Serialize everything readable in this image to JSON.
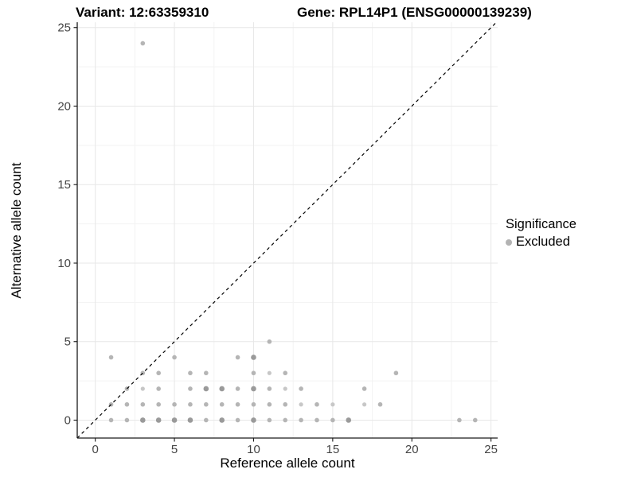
{
  "chart_data": {
    "type": "scatter",
    "title_left": "Variant: 12:63359310",
    "title_right": "Gene: RPL14P1 (ENSG00000139239)",
    "xlabel": "Reference allele count",
    "ylabel": "Alternative allele count",
    "xlim": [
      -1.14,
      25.42
    ],
    "ylim": [
      -1.14,
      25.34
    ],
    "x_ticks": [
      0,
      5,
      10,
      15,
      20,
      25
    ],
    "y_ticks": [
      0,
      5,
      10,
      15,
      20,
      25
    ],
    "x_minor_ticks": [
      2.5,
      7.5,
      12.5,
      17.5,
      22.5
    ],
    "y_minor_ticks": [
      2.5,
      7.5,
      12.5,
      17.5,
      22.5
    ],
    "grid": true,
    "identity_line": {
      "type": "abline",
      "slope": 1,
      "intercept": 0,
      "style": "dashed",
      "color": "#000000"
    },
    "legend": {
      "position": "right",
      "title": "Significance",
      "items": [
        {
          "label": "Excluded",
          "color": "#b3b3b3"
        }
      ]
    },
    "series": [
      {
        "name": "Excluded",
        "points": [
          [
            1,
            0
          ],
          [
            2,
            0
          ],
          [
            3,
            0,
            "d"
          ],
          [
            4,
            0,
            "d"
          ],
          [
            5,
            0,
            "d"
          ],
          [
            6,
            0,
            "d"
          ],
          [
            7,
            0
          ],
          [
            8,
            0,
            "d"
          ],
          [
            9,
            0
          ],
          [
            10,
            0,
            "d"
          ],
          [
            11,
            0
          ],
          [
            12,
            0
          ],
          [
            13,
            0
          ],
          [
            14,
            0
          ],
          [
            15,
            0
          ],
          [
            16,
            0,
            "d"
          ],
          [
            23,
            0
          ],
          [
            24,
            0
          ],
          [
            1,
            1
          ],
          [
            2,
            1
          ],
          [
            3,
            1
          ],
          [
            4,
            1
          ],
          [
            5,
            1
          ],
          [
            6,
            1
          ],
          [
            7,
            1
          ],
          [
            8,
            1
          ],
          [
            9,
            1
          ],
          [
            10,
            1
          ],
          [
            11,
            1
          ],
          [
            12,
            1
          ],
          [
            13,
            1,
            "l"
          ],
          [
            14,
            1
          ],
          [
            15,
            1,
            "l"
          ],
          [
            17,
            1,
            "l"
          ],
          [
            18,
            1
          ],
          [
            2,
            2
          ],
          [
            3,
            2,
            "l"
          ],
          [
            4,
            2
          ],
          [
            6,
            2
          ],
          [
            7,
            2,
            "d"
          ],
          [
            8,
            2,
            "d"
          ],
          [
            9,
            2
          ],
          [
            10,
            2,
            "d"
          ],
          [
            11,
            2
          ],
          [
            12,
            2,
            "l"
          ],
          [
            13,
            2
          ],
          [
            17,
            2
          ],
          [
            3,
            3
          ],
          [
            4,
            3
          ],
          [
            6,
            3
          ],
          [
            7,
            3
          ],
          [
            10,
            3
          ],
          [
            11,
            3,
            "l"
          ],
          [
            12,
            3
          ],
          [
            19,
            3
          ],
          [
            1,
            4
          ],
          [
            5,
            4
          ],
          [
            9,
            4
          ],
          [
            10,
            4,
            "d"
          ],
          [
            11,
            5
          ],
          [
            3,
            24
          ]
        ]
      }
    ],
    "colors": {
      "point_default": "#b5b5b5",
      "point_dark": "#9a9a9a",
      "point_light": "#c7c7c7",
      "grid_major": "#e7e7e7",
      "grid_minor": "#f3f3f3",
      "axis_line": "#1a1a1a",
      "tick_label": "#444444",
      "background": "#ffffff"
    }
  }
}
